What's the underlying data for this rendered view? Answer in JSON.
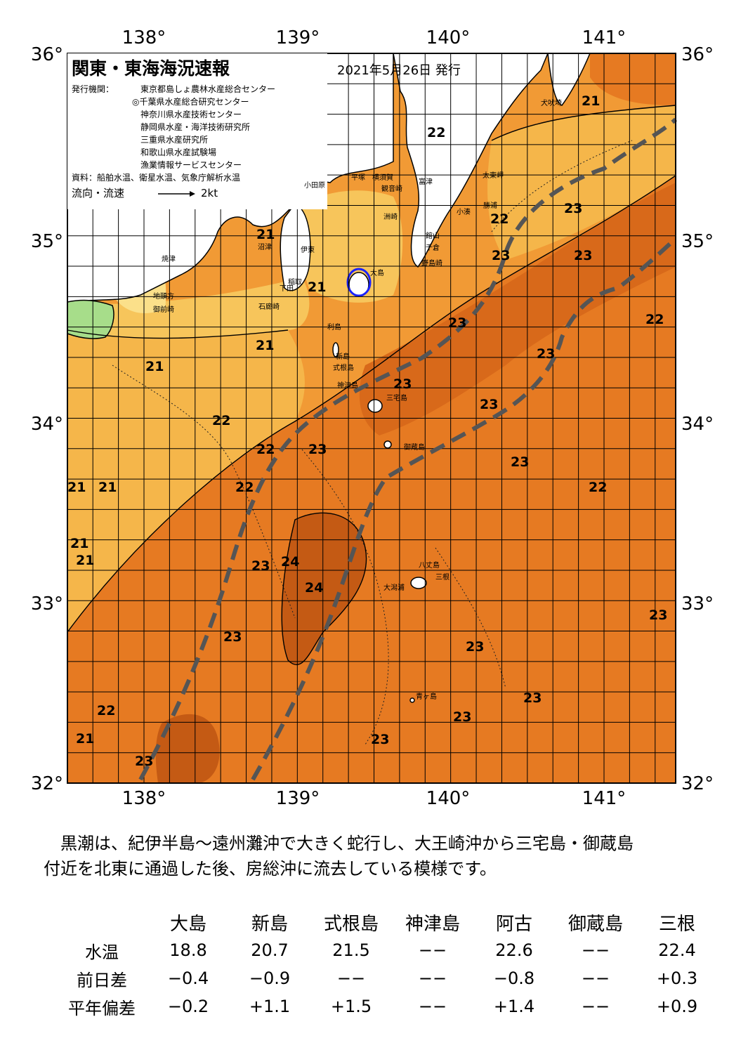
{
  "map": {
    "title": "関東・東海海況速報",
    "issue_date": "2021年5月26日 発行",
    "issuers_label": "発行機関：",
    "issuers": [
      "東京都島しょ農林水産総合センター",
      "◎千葉県水産総合研究センター",
      "神奈川県水産技術センター",
      "静岡県水産・海洋技術研究所",
      "三重県水産研究所",
      "和歌山県水産試験場",
      "漁業情報サービスセンター"
    ],
    "sources": "資料：船舶水温、衛星水温、気象庁解析水温",
    "current_legend_label": "流向・流速",
    "current_legend_value": "2kt",
    "lon_labels": [
      "138°",
      "139°",
      "140°",
      "141°"
    ],
    "lat_labels": [
      "36°",
      "35°",
      "34°",
      "33°",
      "32°"
    ],
    "place_names": [
      "犬吠埼",
      "太東岬",
      "勝浦",
      "小湊",
      "館山",
      "千倉",
      "野島崎",
      "洲崎",
      "横須賀",
      "観音崎",
      "富津",
      "平塚",
      "小田原",
      "伊東",
      "稲取",
      "下田",
      "石廊崎",
      "沼津",
      "焼津",
      "地頭方",
      "御前崎",
      "新島",
      "式根島",
      "神津島",
      "三宅島",
      "御蔵島",
      "八丈島",
      "三根",
      "大潟浦",
      "青ヶ島",
      "利島",
      "大島"
    ],
    "temperature_labels": [
      "21",
      "22",
      "21",
      "21",
      "21",
      "23",
      "22",
      "23",
      "23",
      "23",
      "22",
      "21",
      "21",
      "22",
      "22",
      "23",
      "23",
      "23",
      "22",
      "21",
      "21",
      "21",
      "24",
      "23",
      "24",
      "23",
      "23",
      "23",
      "23",
      "23",
      "22",
      "22",
      "23",
      "23",
      "23",
      "23",
      "21"
    ],
    "colors": {
      "t18": "#ffff9e",
      "t19": "#fbd972",
      "t20": "#f7c55b",
      "t21": "#f5b64a",
      "t22": "#f19a35",
      "t23": "#e67a22",
      "t24": "#c45a14",
      "land": "#ffffff",
      "kuroshio_axis": "#555555",
      "grid": "#000000"
    }
  },
  "summary": {
    "line1": "黒潮は、紀伊半島～遠州灘沖で大きく蛇行し、大王崎沖から三宅島・御蔵島",
    "line2": "付近を北東に通過した後、房総沖に流去している模様です。"
  },
  "stats": {
    "columns": [
      "大島",
      "新島",
      "式根島",
      "神津島",
      "阿古",
      "御蔵島",
      "三根"
    ],
    "rows": [
      {
        "label": "水温",
        "values": [
          "18.8",
          "20.7",
          "21.5",
          "−−",
          "22.6",
          "−−",
          "22.4"
        ]
      },
      {
        "label": "前日差",
        "values": [
          "−0.4",
          "−0.9",
          "−−",
          "−−",
          "−0.8",
          "−−",
          "+0.3"
        ]
      },
      {
        "label": "平年偏差",
        "values": [
          "−0.2",
          "+1.1",
          "+1.5",
          "−−",
          "+1.4",
          "−−",
          "+0.9"
        ]
      }
    ]
  }
}
